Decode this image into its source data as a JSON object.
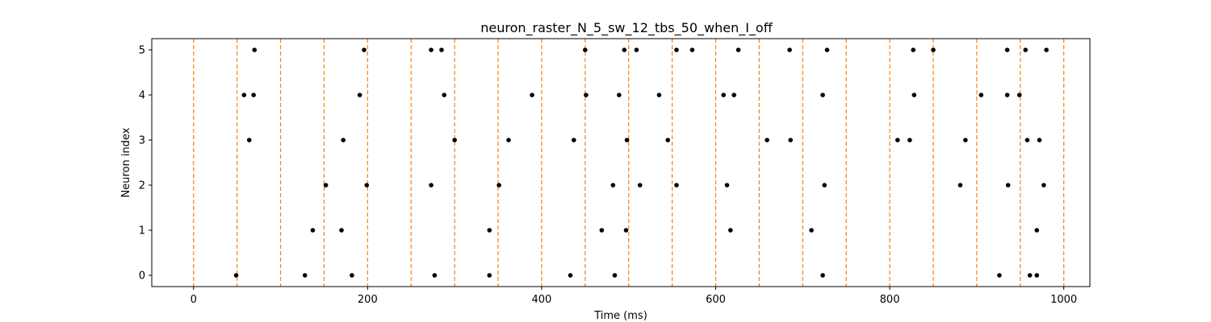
{
  "chart_data": {
    "type": "scatter",
    "title": "neuron_raster_N_5_sw_12_tbs_50_when_I_off",
    "xlabel": "Time (ms)",
    "ylabel": "Neuron index",
    "xlim": [
      -48,
      1030
    ],
    "ylim": [
      -0.25,
      5.25
    ],
    "xticks": [
      0,
      200,
      400,
      600,
      800,
      1000
    ],
    "yticks": [
      0,
      1,
      2,
      3,
      4,
      5
    ],
    "grid": false,
    "marker_color": "#000000",
    "vline_color": "#ff7f0e",
    "vlines": [
      0,
      50,
      100,
      150,
      200,
      250,
      300,
      350,
      400,
      450,
      500,
      550,
      600,
      650,
      700,
      750,
      800,
      850,
      900,
      950,
      1000
    ],
    "spikes": [
      {
        "neuron": 0,
        "times": [
          49,
          128,
          182,
          277,
          340,
          433,
          484,
          723,
          926,
          961,
          969
        ]
      },
      {
        "neuron": 1,
        "times": [
          137,
          170,
          340,
          469,
          497,
          617,
          710,
          969
        ]
      },
      {
        "neuron": 2,
        "times": [
          152,
          199,
          273,
          351,
          482,
          513,
          555,
          613,
          725,
          881,
          936,
          977
        ]
      },
      {
        "neuron": 3,
        "times": [
          64,
          172,
          300,
          362,
          437,
          498,
          545,
          659,
          686,
          809,
          823,
          887,
          958,
          972
        ]
      },
      {
        "neuron": 4,
        "times": [
          58,
          69,
          191,
          288,
          389,
          451,
          489,
          535,
          609,
          621,
          723,
          828,
          905,
          935,
          949
        ]
      },
      {
        "neuron": 5,
        "times": [
          70,
          196,
          273,
          285,
          450,
          495,
          509,
          555,
          573,
          626,
          685,
          728,
          827,
          850,
          935,
          956,
          980
        ]
      }
    ]
  }
}
